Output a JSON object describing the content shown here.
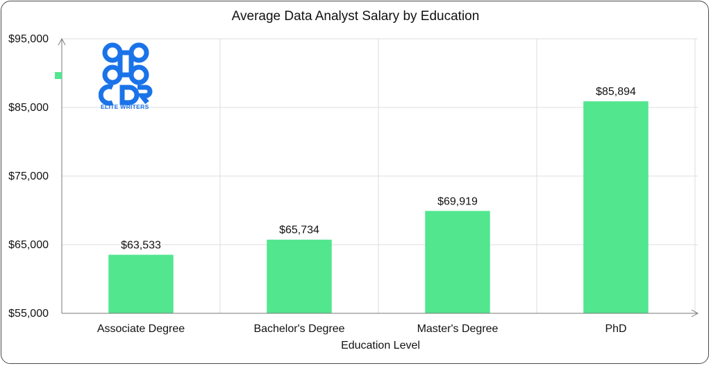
{
  "chart_data": {
    "type": "bar",
    "title": "Average Data Analyst Salary by Education",
    "xlabel": "Education Level",
    "ylabel": "",
    "categories": [
      "Associate Degree",
      "Bachelor's Degree",
      "Master's Degree",
      "PhD"
    ],
    "values": [
      63533,
      65734,
      69919,
      85894
    ],
    "value_labels": [
      "$63,533",
      "$65,734",
      "$69,919",
      "$85,894"
    ],
    "ylim": [
      55000,
      95000
    ],
    "yticks": [
      55000,
      65000,
      75000,
      85000,
      95000
    ],
    "ytick_labels": [
      "$55,000",
      "$65,000",
      "$75,000",
      "$85,000",
      "$95,000"
    ],
    "grid": true,
    "bar_color": "#52e68f"
  },
  "logo": {
    "text": "CDR",
    "subtext": "ELITE WRITERS",
    "color": "#1a73e8"
  }
}
